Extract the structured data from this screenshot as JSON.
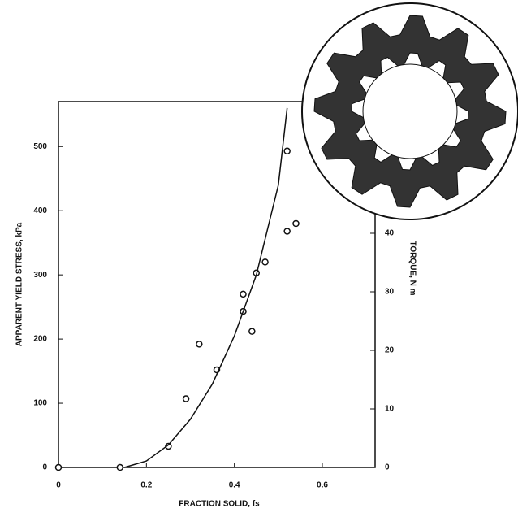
{
  "chart_data": {
    "type": "scatter",
    "x_label": "FRACTION SOLID, fs",
    "y_label": "APPARENT YIELD STRESS, kPa",
    "y2_label": "TORQUE, N m",
    "xlim": [
      0,
      0.72
    ],
    "xticks": [
      0,
      0.2,
      0.4,
      0.6
    ],
    "ylim": [
      0,
      570
    ],
    "yticks": [
      0,
      100,
      200,
      300,
      400,
      500
    ],
    "y2lim": [
      0,
      62.5
    ],
    "y2ticks": [
      0,
      10,
      20,
      30,
      40
    ],
    "series": [
      {
        "type": "scatter",
        "color": "#111111",
        "x": [
          0,
          0.14,
          0.25,
          0.29,
          0.32,
          0.36,
          0.42,
          0.42,
          0.44,
          0.45,
          0.47,
          0.52,
          0.52,
          0.54
        ],
        "values": [
          0,
          0,
          33,
          107,
          192,
          152,
          270,
          243,
          212,
          303,
          320,
          493,
          368,
          380
        ]
      },
      {
        "type": "line",
        "color": "#111111",
        "x": [
          0.15,
          0.2,
          0.25,
          0.3,
          0.35,
          0.4,
          0.45,
          0.5,
          0.52
        ],
        "values": [
          0,
          10,
          35,
          75,
          130,
          205,
          300,
          440,
          560
        ]
      }
    ]
  }
}
